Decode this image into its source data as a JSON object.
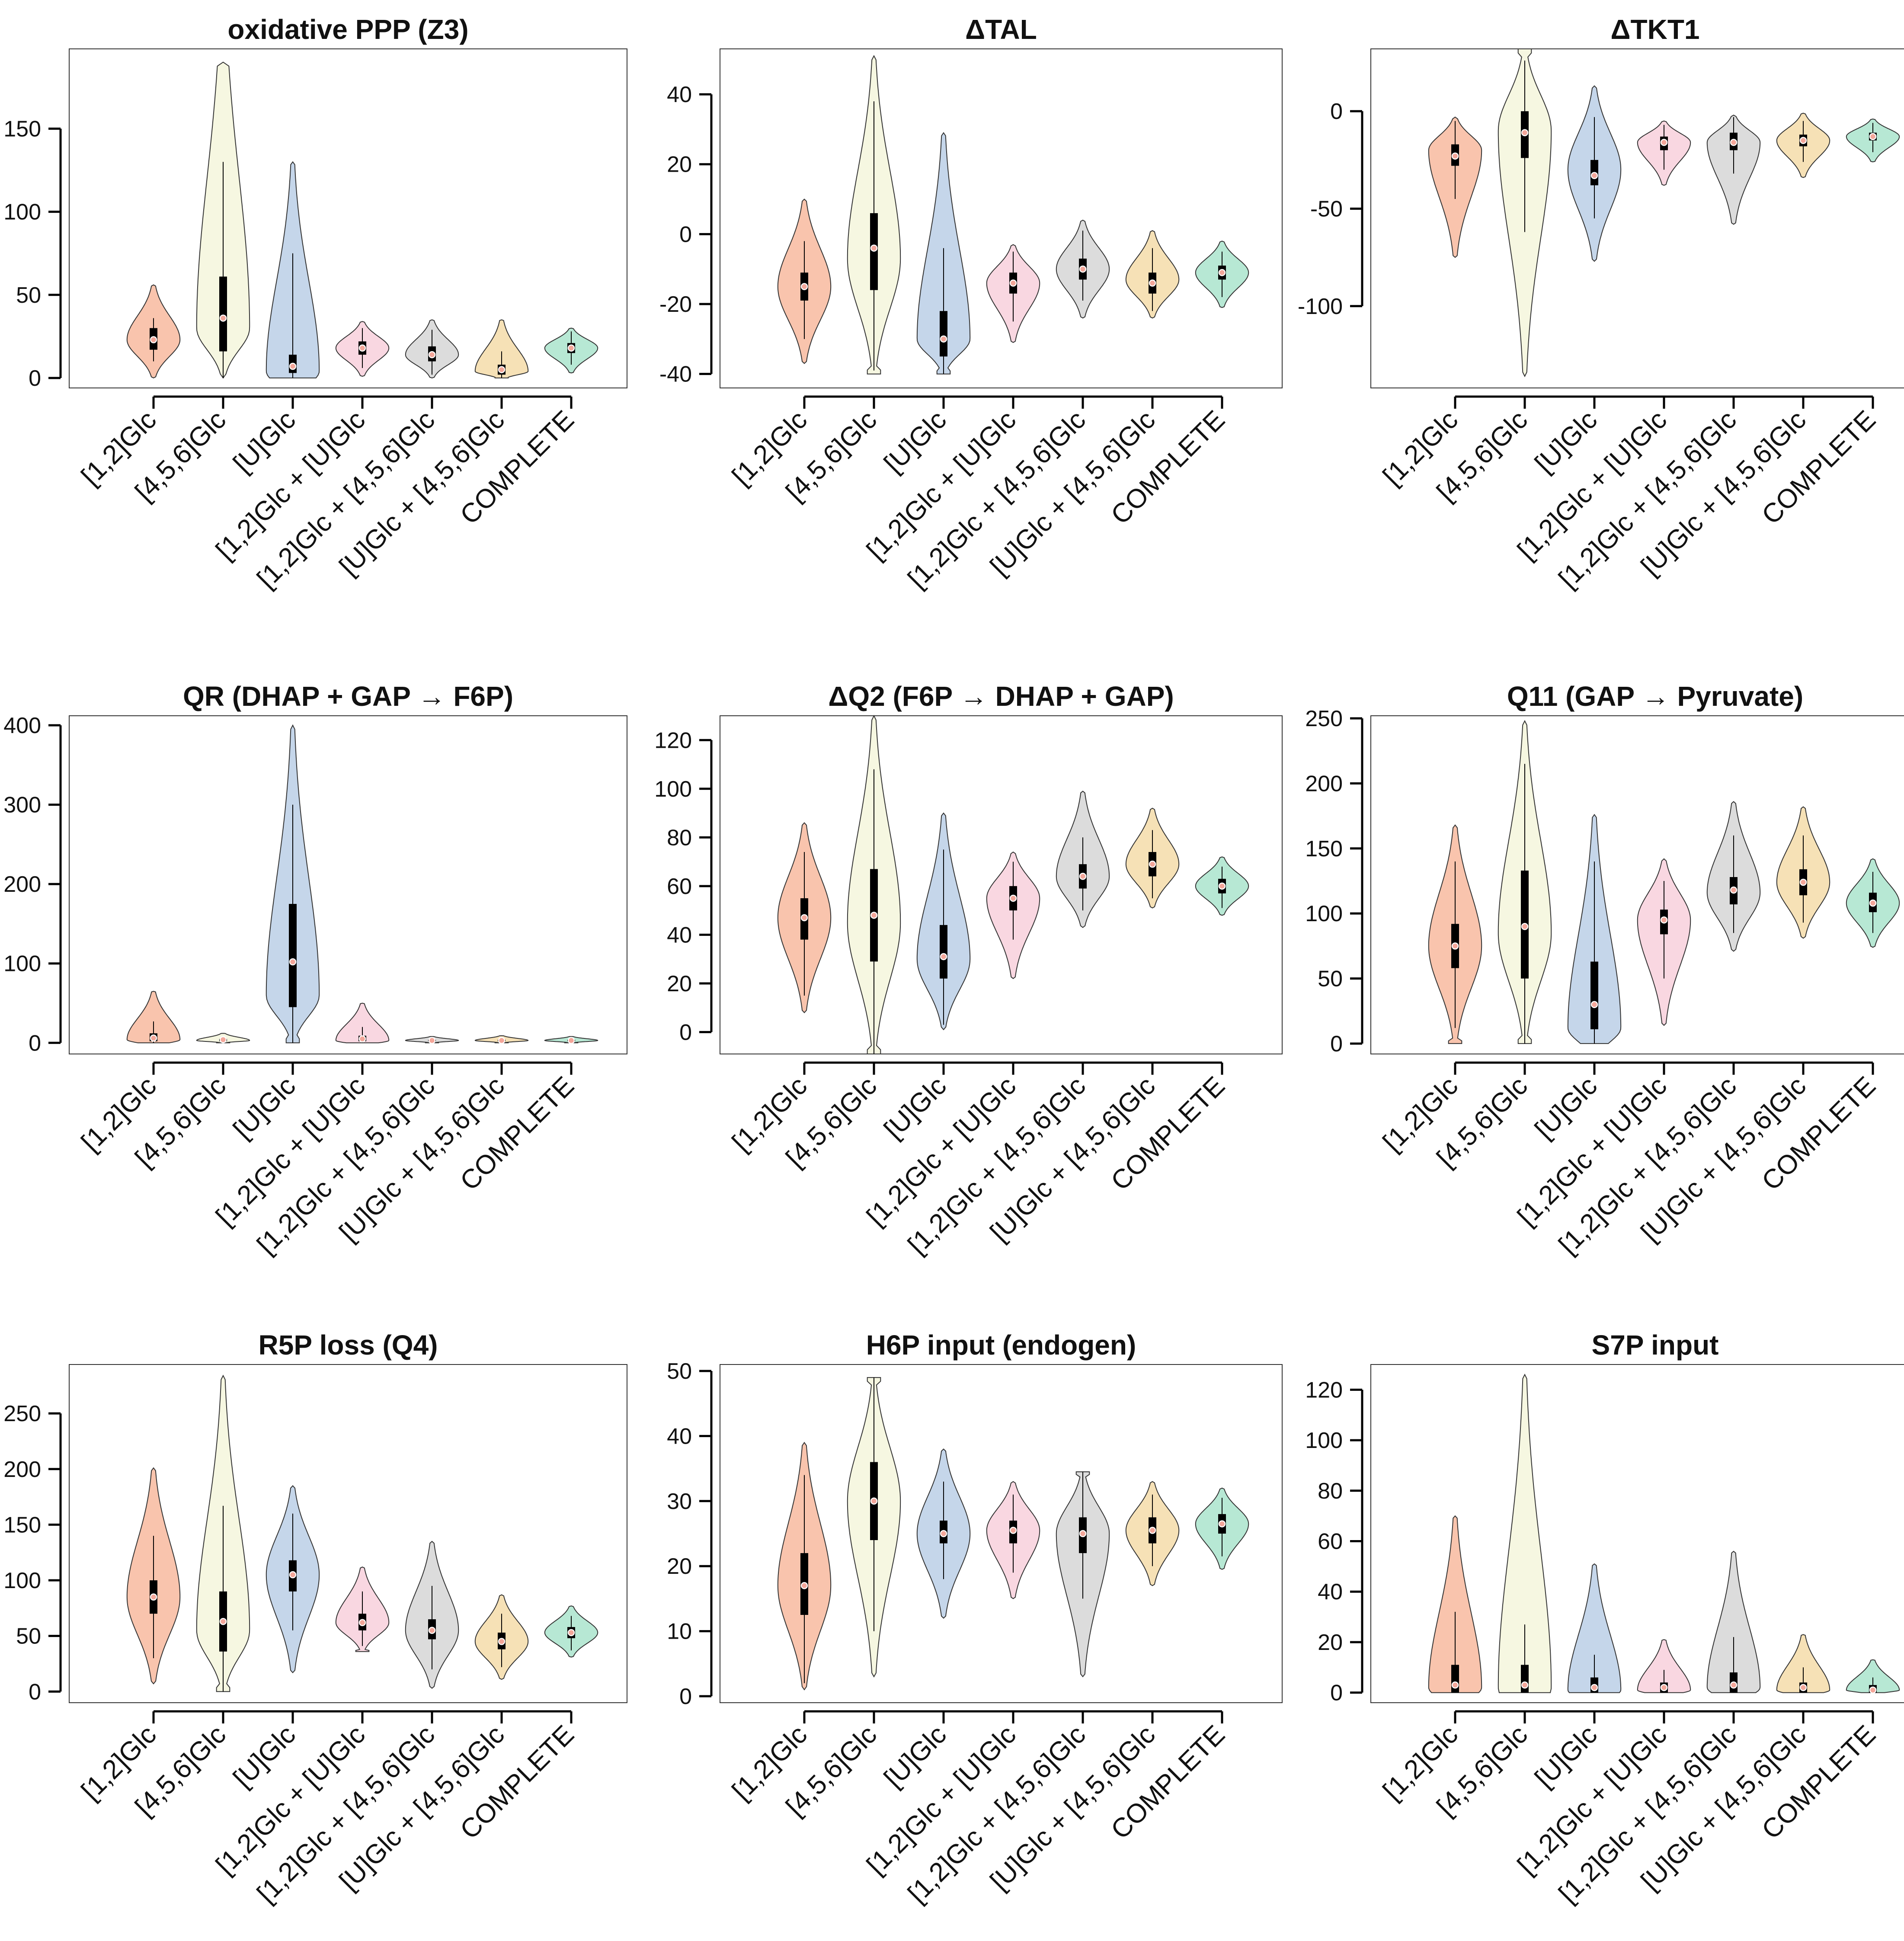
{
  "chart_data": {
    "type": "violin",
    "categories": [
      "[1,2]Glc",
      "[4,5,6]Glc",
      "[U]Glc",
      "[1,2]Glc + [U]Glc",
      "[1,2]Glc + [4,5,6]Glc",
      "[U]Glc + [4,5,6]Glc",
      "COMPLETE"
    ],
    "colors": [
      "#f9c4ad",
      "#f6f7e1",
      "#c5d6ea",
      "#f9d7e1",
      "#dcdcdc",
      "#f6e1b6",
      "#b7e8d4"
    ],
    "median_marker_color": "#f4a79a",
    "panels": [
      {
        "title": "oxidative PPP (Z3)",
        "ylim": [
          -6,
          198
        ],
        "yticks": [
          0,
          50,
          100,
          150
        ],
        "violins": [
          {
            "min": 0,
            "max": 56,
            "q1": 17,
            "median": 23,
            "q3": 30,
            "whisker_low": 10,
            "whisker_high": 36,
            "mode": 23,
            "width": 0.85
          },
          {
            "min": 0,
            "max": 190,
            "q1": 16,
            "median": 36,
            "q3": 61,
            "whisker_low": 0,
            "whisker_high": 130,
            "mode": 30,
            "width": 0.85,
            "skew": 1.3
          },
          {
            "min": 0,
            "max": 130,
            "q1": 3,
            "median": 7,
            "q3": 14,
            "whisker_low": 0,
            "whisker_high": 75,
            "mode": 4,
            "width": 0.85,
            "flat_bottom": true
          },
          {
            "min": 1,
            "max": 34,
            "q1": 14,
            "median": 18,
            "q3": 22,
            "whisker_low": 6,
            "whisker_high": 30,
            "mode": 18,
            "width": 0.85
          },
          {
            "min": 0,
            "max": 35,
            "q1": 10,
            "median": 14,
            "q3": 19,
            "whisker_low": 2,
            "whisker_high": 29,
            "mode": 14,
            "width": 0.85
          },
          {
            "min": 0,
            "max": 35,
            "q1": 2,
            "median": 5,
            "q3": 8,
            "whisker_low": 0,
            "whisker_high": 16,
            "mode": 4,
            "width": 0.85,
            "flat_bottom": true
          },
          {
            "min": 3,
            "max": 30,
            "q1": 15,
            "median": 18,
            "q3": 21,
            "whisker_low": 8,
            "whisker_high": 28,
            "mode": 18,
            "width": 0.85
          }
        ]
      },
      {
        "title": "ΔTAL",
        "ylim": [
          -44,
          53
        ],
        "yticks": [
          -40,
          -20,
          0,
          20,
          40
        ],
        "violins": [
          {
            "min": -37,
            "max": 10,
            "q1": -19,
            "median": -15,
            "q3": -11,
            "whisker_low": -30,
            "whisker_high": -2,
            "mode": -15,
            "width": 0.85
          },
          {
            "min": -40,
            "max": 51,
            "q1": -16,
            "median": -4,
            "q3": 6,
            "whisker_low": -39,
            "whisker_high": 38,
            "mode": -7,
            "width": 0.85,
            "flat_bottom": true
          },
          {
            "min": -40,
            "max": 29,
            "q1": -35,
            "median": -30,
            "q3": -22,
            "whisker_low": -40,
            "whisker_high": -4,
            "mode": -30,
            "width": 0.85,
            "flat_bottom": true
          },
          {
            "min": -31,
            "max": -3,
            "q1": -17,
            "median": -14,
            "q3": -11,
            "whisker_low": -25,
            "whisker_high": -5,
            "mode": -14,
            "width": 0.85
          },
          {
            "min": -24,
            "max": 4,
            "q1": -13,
            "median": -10,
            "q3": -7,
            "whisker_low": -19,
            "whisker_high": 1,
            "mode": -10,
            "width": 0.85
          },
          {
            "min": -24,
            "max": 1,
            "q1": -17,
            "median": -14,
            "q3": -11,
            "whisker_low": -22,
            "whisker_high": -4,
            "mode": -13,
            "width": 0.85
          },
          {
            "min": -21,
            "max": -2,
            "q1": -13,
            "median": -11,
            "q3": -9,
            "whisker_low": -18,
            "whisker_high": -5,
            "mode": -11,
            "width": 0.85
          }
        ]
      },
      {
        "title": "ΔTKT1",
        "ylim": [
          -142,
          32
        ],
        "yticks": [
          -100,
          -50,
          0
        ],
        "violins": [
          {
            "min": -75,
            "max": -3,
            "q1": -28,
            "median": -23,
            "q3": -17,
            "whisker_low": -45,
            "whisker_high": -5,
            "mode": -20,
            "width": 0.85
          },
          {
            "min": -136,
            "max": 32,
            "q1": -24,
            "median": -11,
            "q3": 0,
            "whisker_low": -62,
            "whisker_high": 26,
            "mode": -10,
            "width": 0.85,
            "flat_top": true
          },
          {
            "min": -77,
            "max": 13,
            "q1": -38,
            "median": -33,
            "q3": -25,
            "whisker_low": -55,
            "whisker_high": -3,
            "mode": -30,
            "width": 0.85
          },
          {
            "min": -38,
            "max": -5,
            "q1": -20,
            "median": -16,
            "q3": -13,
            "whisker_low": -30,
            "whisker_high": -7,
            "mode": -16,
            "width": 0.85
          },
          {
            "min": -58,
            "max": -2,
            "q1": -20,
            "median": -16,
            "q3": -11,
            "whisker_low": -32,
            "whisker_high": -3,
            "mode": -16,
            "width": 0.85
          },
          {
            "min": -34,
            "max": -1,
            "q1": -18,
            "median": -15,
            "q3": -12,
            "whisker_low": -26,
            "whisker_high": -5,
            "mode": -15,
            "width": 0.85
          },
          {
            "min": -26,
            "max": -4,
            "q1": -15,
            "median": -13,
            "q3": -11,
            "whisker_low": -21,
            "whisker_high": -6,
            "mode": -13,
            "width": 0.85
          }
        ]
      },
      {
        "title": "QR (DHAP + GAP → F6P)",
        "ylim": [
          -14,
          412
        ],
        "yticks": [
          0,
          100,
          200,
          300,
          400
        ],
        "violins": [
          {
            "min": 0,
            "max": 65,
            "q1": 2,
            "median": 6,
            "q3": 12,
            "whisker_low": 0,
            "whisker_high": 27,
            "mode": 4,
            "width": 0.85,
            "flat_bottom": true
          },
          {
            "min": 0,
            "max": 12,
            "q1": 2,
            "median": 4,
            "q3": 5,
            "whisker_low": 0,
            "whisker_high": 8,
            "mode": 3,
            "width": 0.85,
            "flat_bottom": true
          },
          {
            "min": 0,
            "max": 400,
            "q1": 45,
            "median": 102,
            "q3": 175,
            "whisker_low": 0,
            "whisker_high": 300,
            "mode": 60,
            "width": 0.85,
            "flat_bottom": true
          },
          {
            "min": 0,
            "max": 50,
            "q1": 2,
            "median": 5,
            "q3": 9,
            "whisker_low": 0,
            "whisker_high": 20,
            "mode": 3,
            "width": 0.85,
            "flat_bottom": true
          },
          {
            "min": 0,
            "max": 8,
            "q1": 2,
            "median": 3,
            "q3": 4,
            "whisker_low": 0,
            "whisker_high": 6,
            "mode": 3,
            "width": 0.85,
            "flat_bottom": true
          },
          {
            "min": 0,
            "max": 9,
            "q1": 2,
            "median": 3,
            "q3": 4,
            "whisker_low": 0,
            "whisker_high": 6,
            "mode": 3,
            "width": 0.85,
            "flat_bottom": true
          },
          {
            "min": 0,
            "max": 8,
            "q1": 2,
            "median": 3,
            "q3": 4,
            "whisker_low": 0,
            "whisker_high": 6,
            "mode": 3,
            "width": 0.85,
            "flat_bottom": true
          }
        ]
      },
      {
        "title": "ΔQ2 (F6P → DHAP + GAP)",
        "ylim": [
          -9,
          130
        ],
        "yticks": [
          0,
          20,
          40,
          60,
          80,
          100,
          120
        ],
        "violins": [
          {
            "min": 8,
            "max": 86,
            "q1": 38,
            "median": 47,
            "q3": 55,
            "whisker_low": 15,
            "whisker_high": 74,
            "mode": 47,
            "width": 0.85
          },
          {
            "min": -9,
            "max": 130,
            "q1": 29,
            "median": 48,
            "q3": 67,
            "whisker_low": -9,
            "whisker_high": 108,
            "mode": 45,
            "width": 0.85,
            "flat_bottom": true
          },
          {
            "min": 1,
            "max": 90,
            "q1": 22,
            "median": 31,
            "q3": 44,
            "whisker_low": 3,
            "whisker_high": 75,
            "mode": 30,
            "width": 0.85
          },
          {
            "min": 22,
            "max": 74,
            "q1": 50,
            "median": 55,
            "q3": 60,
            "whisker_low": 38,
            "whisker_high": 70,
            "mode": 55,
            "width": 0.85
          },
          {
            "min": 43,
            "max": 99,
            "q1": 59,
            "median": 64,
            "q3": 69,
            "whisker_low": 50,
            "whisker_high": 80,
            "mode": 64,
            "width": 0.85
          },
          {
            "min": 51,
            "max": 92,
            "q1": 64,
            "median": 69,
            "q3": 74,
            "whisker_low": 55,
            "whisker_high": 83,
            "mode": 69,
            "width": 0.85
          },
          {
            "min": 48,
            "max": 72,
            "q1": 57,
            "median": 60,
            "q3": 63,
            "whisker_low": 51,
            "whisker_high": 68,
            "mode": 60,
            "width": 0.85
          }
        ]
      },
      {
        "title": "Q11 (GAP → Pyruvate)",
        "ylim": [
          -8,
          252
        ],
        "yticks": [
          0,
          50,
          100,
          150,
          200,
          250
        ],
        "violins": [
          {
            "min": 0,
            "max": 168,
            "q1": 58,
            "median": 75,
            "q3": 92,
            "whisker_low": 12,
            "whisker_high": 140,
            "mode": 75,
            "width": 0.85,
            "flat_bottom": true
          },
          {
            "min": 0,
            "max": 248,
            "q1": 50,
            "median": 90,
            "q3": 133,
            "whisker_low": 0,
            "whisker_high": 215,
            "mode": 85,
            "width": 0.85,
            "flat_bottom": true
          },
          {
            "min": 0,
            "max": 176,
            "q1": 11,
            "median": 30,
            "q3": 63,
            "whisker_low": 0,
            "whisker_high": 140,
            "mode": 12,
            "width": 0.85,
            "flat_bottom": true
          },
          {
            "min": 14,
            "max": 142,
            "q1": 84,
            "median": 95,
            "q3": 103,
            "whisker_low": 50,
            "whisker_high": 125,
            "mode": 95,
            "width": 0.85
          },
          {
            "min": 71,
            "max": 186,
            "q1": 107,
            "median": 118,
            "q3": 128,
            "whisker_low": 85,
            "whisker_high": 160,
            "mode": 116,
            "width": 0.85
          },
          {
            "min": 81,
            "max": 182,
            "q1": 114,
            "median": 124,
            "q3": 134,
            "whisker_low": 93,
            "whisker_high": 160,
            "mode": 124,
            "width": 0.85
          },
          {
            "min": 74,
            "max": 142,
            "q1": 101,
            "median": 108,
            "q3": 116,
            "whisker_low": 85,
            "whisker_high": 132,
            "mode": 108,
            "width": 0.85
          }
        ]
      },
      {
        "title": "R5P loss (Q4)",
        "ylim": [
          -10,
          294
        ],
        "yticks": [
          0,
          50,
          100,
          150,
          200,
          250
        ],
        "violins": [
          {
            "min": 7,
            "max": 201,
            "q1": 70,
            "median": 85,
            "q3": 100,
            "whisker_low": 30,
            "whisker_high": 140,
            "mode": 85,
            "width": 0.85
          },
          {
            "min": 0,
            "max": 284,
            "q1": 36,
            "median": 63,
            "q3": 90,
            "whisker_low": 0,
            "whisker_high": 167,
            "mode": 55,
            "width": 0.85,
            "flat_bottom": true
          },
          {
            "min": 17,
            "max": 185,
            "q1": 90,
            "median": 105,
            "q3": 118,
            "whisker_low": 55,
            "whisker_high": 160,
            "mode": 105,
            "width": 0.85
          },
          {
            "min": 36,
            "max": 112,
            "q1": 55,
            "median": 62,
            "q3": 70,
            "whisker_low": 41,
            "whisker_high": 90,
            "mode": 62,
            "width": 0.85,
            "flat_bottom": true
          },
          {
            "min": 3,
            "max": 135,
            "q1": 47,
            "median": 55,
            "q3": 65,
            "whisker_low": 20,
            "whisker_high": 95,
            "mode": 55,
            "width": 0.85
          },
          {
            "min": 11,
            "max": 87,
            "q1": 38,
            "median": 45,
            "q3": 53,
            "whisker_low": 22,
            "whisker_high": 70,
            "mode": 45,
            "width": 0.85
          },
          {
            "min": 31,
            "max": 77,
            "q1": 48,
            "median": 53,
            "q3": 58,
            "whisker_low": 37,
            "whisker_high": 68,
            "mode": 53,
            "width": 0.85
          }
        ]
      },
      {
        "title": "H6P input (endogen)",
        "ylim": [
          -1,
          51
        ],
        "yticks": [
          0,
          10,
          20,
          30,
          40,
          50
        ],
        "violins": [
          {
            "min": 1,
            "max": 39,
            "q1": 12.5,
            "median": 17,
            "q3": 22,
            "whisker_low": 2,
            "whisker_high": 34,
            "mode": 17,
            "width": 0.85
          },
          {
            "min": 3,
            "max": 49,
            "q1": 24,
            "median": 30,
            "q3": 36,
            "whisker_low": 10,
            "whisker_high": 49,
            "mode": 30,
            "width": 0.85,
            "flat_top": true
          },
          {
            "min": 12,
            "max": 38,
            "q1": 23.5,
            "median": 25,
            "q3": 27,
            "whisker_low": 18,
            "whisker_high": 33,
            "mode": 25,
            "width": 0.85
          },
          {
            "min": 15,
            "max": 33,
            "q1": 23.5,
            "median": 25.5,
            "q3": 27,
            "whisker_low": 19,
            "whisker_high": 31,
            "mode": 25.5,
            "width": 0.85
          },
          {
            "min": 3,
            "max": 34.5,
            "q1": 22,
            "median": 25,
            "q3": 27.5,
            "whisker_low": 15,
            "whisker_high": 34.5,
            "mode": 25,
            "width": 0.85,
            "flat_top": true
          },
          {
            "min": 17,
            "max": 33,
            "q1": 23.5,
            "median": 25.5,
            "q3": 27.5,
            "whisker_low": 20,
            "whisker_high": 31,
            "mode": 25.5,
            "width": 0.85
          },
          {
            "min": 19.5,
            "max": 32,
            "q1": 25,
            "median": 26.5,
            "q3": 28,
            "whisker_low": 21.5,
            "whisker_high": 30.5,
            "mode": 26.5,
            "width": 0.85
          }
        ]
      },
      {
        "title": "S7P input",
        "ylim": [
          -4,
          130
        ],
        "yticks": [
          0,
          20,
          40,
          60,
          80,
          100,
          120
        ],
        "violins": [
          {
            "min": 0,
            "max": 70,
            "q1": 0,
            "median": 3,
            "q3": 11,
            "whisker_low": 0,
            "whisker_high": 32,
            "mode": 2,
            "width": 0.85,
            "flat_bottom": true
          },
          {
            "min": 0,
            "max": 126,
            "q1": 0,
            "median": 3,
            "q3": 11,
            "whisker_low": 0,
            "whisker_high": 27,
            "mode": 2,
            "width": 0.85,
            "flat_bottom": true
          },
          {
            "min": 0,
            "max": 51,
            "q1": 0,
            "median": 2,
            "q3": 6,
            "whisker_low": 0,
            "whisker_high": 15,
            "mode": 1,
            "width": 0.85,
            "flat_bottom": true
          },
          {
            "min": 0,
            "max": 21,
            "q1": 0,
            "median": 2,
            "q3": 4,
            "whisker_low": 0,
            "whisker_high": 9,
            "mode": 1,
            "width": 0.85,
            "flat_bottom": true
          },
          {
            "min": 0,
            "max": 56,
            "q1": 0,
            "median": 3,
            "q3": 8,
            "whisker_low": 0,
            "whisker_high": 22,
            "mode": 2,
            "width": 0.85,
            "flat_bottom": true
          },
          {
            "min": 0,
            "max": 23,
            "q1": 0,
            "median": 2,
            "q3": 4,
            "whisker_low": 0,
            "whisker_high": 10,
            "mode": 1,
            "width": 0.85,
            "flat_bottom": true
          },
          {
            "min": 0,
            "max": 13,
            "q1": 0,
            "median": 1,
            "q3": 3,
            "whisker_low": 0,
            "whisker_high": 6,
            "mode": 1,
            "width": 0.85,
            "flat_bottom": true
          }
        ]
      }
    ]
  }
}
